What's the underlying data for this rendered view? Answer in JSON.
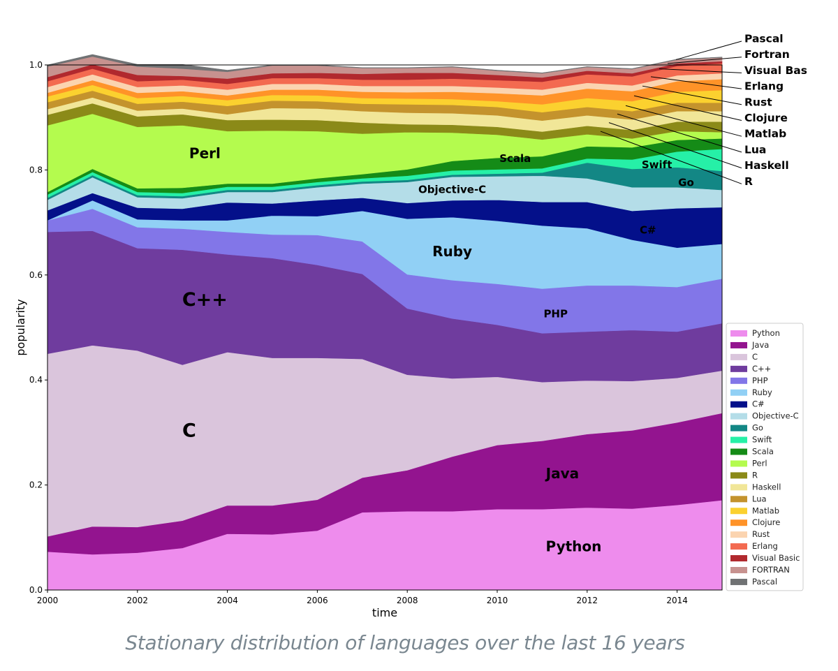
{
  "chart_data": {
    "type": "area",
    "stacked": true,
    "xlabel": "time",
    "ylabel": "popularity",
    "xlim": [
      2000,
      2015
    ],
    "ylim": [
      0,
      1
    ],
    "xticks": [
      "2000",
      "2002",
      "2004",
      "2006",
      "2008",
      "2010",
      "2012",
      "2014"
    ],
    "yticks": [
      "0.0",
      "0.2",
      "0.4",
      "0.6",
      "0.8",
      "1.0"
    ],
    "x": [
      2000,
      2001,
      2002,
      2003,
      2004,
      2005,
      2006,
      2007,
      2008,
      2009,
      2010,
      2011,
      2012,
      2013,
      2014,
      2015
    ],
    "series": [
      {
        "name": "Python",
        "color": "#ee8ced",
        "values": [
          0.073,
          0.068,
          0.071,
          0.08,
          0.107,
          0.106,
          0.113,
          0.148,
          0.15,
          0.15,
          0.154,
          0.154,
          0.157,
          0.155,
          0.162,
          0.171
        ]
      },
      {
        "name": "Java",
        "color": "#93148f",
        "values": [
          0.029,
          0.053,
          0.049,
          0.052,
          0.054,
          0.055,
          0.059,
          0.066,
          0.078,
          0.104,
          0.122,
          0.13,
          0.14,
          0.149,
          0.157,
          0.166
        ]
      },
      {
        "name": "C",
        "color": "#dac5dc",
        "values": [
          0.348,
          0.345,
          0.336,
          0.297,
          0.292,
          0.281,
          0.27,
          0.226,
          0.182,
          0.149,
          0.13,
          0.112,
          0.102,
          0.094,
          0.085,
          0.081
        ]
      },
      {
        "name": "C++",
        "color": "#6f3c9e",
        "values": [
          0.232,
          0.218,
          0.195,
          0.219,
          0.186,
          0.19,
          0.177,
          0.162,
          0.126,
          0.114,
          0.099,
          0.093,
          0.093,
          0.097,
          0.088,
          0.09
        ]
      },
      {
        "name": "PHP",
        "color": "#8276e8",
        "values": [
          0.022,
          0.042,
          0.04,
          0.04,
          0.043,
          0.045,
          0.057,
          0.062,
          0.065,
          0.073,
          0.078,
          0.085,
          0.088,
          0.085,
          0.085,
          0.085
        ]
      },
      {
        "name": "Ruby",
        "color": "#91d0f5",
        "values": [
          0.0,
          0.016,
          0.015,
          0.016,
          0.022,
          0.036,
          0.036,
          0.058,
          0.106,
          0.12,
          0.12,
          0.12,
          0.109,
          0.087,
          0.075,
          0.066
        ]
      },
      {
        "name": "C#",
        "color": "#04108a",
        "values": [
          0.019,
          0.014,
          0.022,
          0.022,
          0.034,
          0.023,
          0.03,
          0.025,
          0.03,
          0.032,
          0.04,
          0.045,
          0.05,
          0.055,
          0.075,
          0.07
        ]
      },
      {
        "name": "Objective-C",
        "color": "#b4dde8",
        "values": [
          0.02,
          0.03,
          0.02,
          0.02,
          0.02,
          0.022,
          0.025,
          0.027,
          0.04,
          0.045,
          0.045,
          0.05,
          0.045,
          0.045,
          0.04,
          0.033
        ]
      },
      {
        "name": "Go",
        "color": "#138785",
        "values": [
          0.004,
          0.004,
          0.004,
          0.004,
          0.004,
          0.004,
          0.004,
          0.004,
          0.004,
          0.004,
          0.005,
          0.006,
          0.03,
          0.035,
          0.038,
          0.036
        ]
      },
      {
        "name": "Swift",
        "color": "#26f0a7",
        "values": [
          0.006,
          0.006,
          0.006,
          0.006,
          0.006,
          0.006,
          0.006,
          0.006,
          0.008,
          0.008,
          0.008,
          0.008,
          0.008,
          0.018,
          0.03,
          0.042
        ]
      },
      {
        "name": "Scala",
        "color": "#158b17",
        "values": [
          0.005,
          0.006,
          0.007,
          0.01,
          0.006,
          0.006,
          0.007,
          0.008,
          0.012,
          0.018,
          0.022,
          0.023,
          0.023,
          0.023,
          0.022,
          0.02
        ]
      },
      {
        "name": "Perl",
        "color": "#b4fb4e",
        "values": [
          0.127,
          0.105,
          0.117,
          0.119,
          0.1,
          0.101,
          0.09,
          0.077,
          0.071,
          0.054,
          0.044,
          0.032,
          0.023,
          0.017,
          0.017,
          0.012
        ]
      },
      {
        "name": "R",
        "color": "#8b8a18",
        "values": [
          0.02,
          0.02,
          0.02,
          0.021,
          0.021,
          0.021,
          0.021,
          0.021,
          0.015,
          0.015,
          0.015,
          0.015,
          0.016,
          0.016,
          0.018,
          0.02
        ]
      },
      {
        "name": "Haskell",
        "color": "#f1e698",
        "values": [
          0.011,
          0.011,
          0.011,
          0.011,
          0.011,
          0.022,
          0.022,
          0.022,
          0.022,
          0.022,
          0.022,
          0.021,
          0.02,
          0.02,
          0.02,
          0.02
        ]
      },
      {
        "name": "Lua",
        "color": "#c4932d",
        "values": [
          0.013,
          0.013,
          0.013,
          0.013,
          0.016,
          0.014,
          0.014,
          0.014,
          0.016,
          0.016,
          0.016,
          0.016,
          0.016,
          0.016,
          0.016,
          0.016
        ]
      },
      {
        "name": "Matlab",
        "color": "#fbd12f",
        "values": [
          0.011,
          0.011,
          0.011,
          0.011,
          0.011,
          0.011,
          0.011,
          0.011,
          0.011,
          0.011,
          0.011,
          0.015,
          0.017,
          0.019,
          0.021,
          0.024
        ]
      },
      {
        "name": "Clojure",
        "color": "#ff9328",
        "values": [
          0.007,
          0.009,
          0.01,
          0.009,
          0.009,
          0.01,
          0.011,
          0.012,
          0.012,
          0.014,
          0.015,
          0.017,
          0.018,
          0.019,
          0.02,
          0.021
        ]
      },
      {
        "name": "Rust",
        "color": "#fbd4b0",
        "values": [
          0.011,
          0.011,
          0.011,
          0.011,
          0.011,
          0.011,
          0.011,
          0.011,
          0.012,
          0.011,
          0.011,
          0.011,
          0.011,
          0.011,
          0.011,
          0.011
        ]
      },
      {
        "name": "Erlang",
        "color": "#f36a50",
        "values": [
          0.011,
          0.011,
          0.011,
          0.011,
          0.011,
          0.011,
          0.011,
          0.012,
          0.012,
          0.014,
          0.014,
          0.015,
          0.016,
          0.017,
          0.018,
          0.019
        ]
      },
      {
        "name": "Visual Basic",
        "color": "#b1292e",
        "values": [
          0.008,
          0.008,
          0.012,
          0.007,
          0.01,
          0.009,
          0.01,
          0.011,
          0.013,
          0.011,
          0.01,
          0.008,
          0.007,
          0.006,
          0.005,
          0.004
        ]
      },
      {
        "name": "FORTRAN",
        "color": "#c7928f",
        "values": [
          0.02,
          0.015,
          0.016,
          0.014,
          0.013,
          0.015,
          0.014,
          0.011,
          0.009,
          0.011,
          0.008,
          0.008,
          0.007,
          0.008,
          0.007,
          0.007
        ]
      },
      {
        "name": "Pascal",
        "color": "#707274",
        "values": [
          0.003,
          0.004,
          0.004,
          0.008,
          0.003,
          0.001,
          0.001,
          0.001,
          0.001,
          0.001,
          0.001,
          0.001,
          0.001,
          0.001,
          0.001,
          0.001
        ]
      }
    ],
    "annotations": [
      {
        "label": "Perl",
        "x": 2003.5,
        "y": 0.83,
        "size": "md"
      },
      {
        "label": "Scala",
        "x": 2010.4,
        "y": 0.821,
        "size": "sm"
      },
      {
        "label": "Swift",
        "x": 2013.55,
        "y": 0.809,
        "size": "sm"
      },
      {
        "label": "Objective-C",
        "x": 2009.0,
        "y": 0.762,
        "size": "sm"
      },
      {
        "label": "Go",
        "x": 2014.2,
        "y": 0.775,
        "size": "sm"
      },
      {
        "label": "C#",
        "x": 2013.35,
        "y": 0.685,
        "size": "sm"
      },
      {
        "label": "Ruby",
        "x": 2009.0,
        "y": 0.643,
        "size": "md"
      },
      {
        "label": "C++",
        "x": 2003.5,
        "y": 0.551,
        "size": "lg"
      },
      {
        "label": "PHP",
        "x": 2011.3,
        "y": 0.525,
        "size": "sm"
      },
      {
        "label": "C",
        "x": 2003.15,
        "y": 0.302,
        "size": "lg"
      },
      {
        "label": "Java",
        "x": 2011.45,
        "y": 0.22,
        "size": "md"
      },
      {
        "label": "Python",
        "x": 2011.7,
        "y": 0.081,
        "size": "md"
      }
    ],
    "side_labels": [
      {
        "label": "Pascal",
        "series": "Pascal"
      },
      {
        "label": "Fortran",
        "series": "FORTRAN"
      },
      {
        "label": "Visual Basic",
        "series": "Visual Basic"
      },
      {
        "label": "Erlang",
        "series": "Erlang"
      },
      {
        "label": "Rust",
        "series": "Rust"
      },
      {
        "label": "Clojure",
        "series": "Clojure"
      },
      {
        "label": "Matlab",
        "series": "Matlab"
      },
      {
        "label": "Lua",
        "series": "Lua"
      },
      {
        "label": "Haskell",
        "series": "Haskell"
      },
      {
        "label": "R",
        "series": "R"
      }
    ],
    "legend": {
      "placement": "lower-right"
    }
  },
  "caption": "Stationary distribution of languages over the last 16 years"
}
